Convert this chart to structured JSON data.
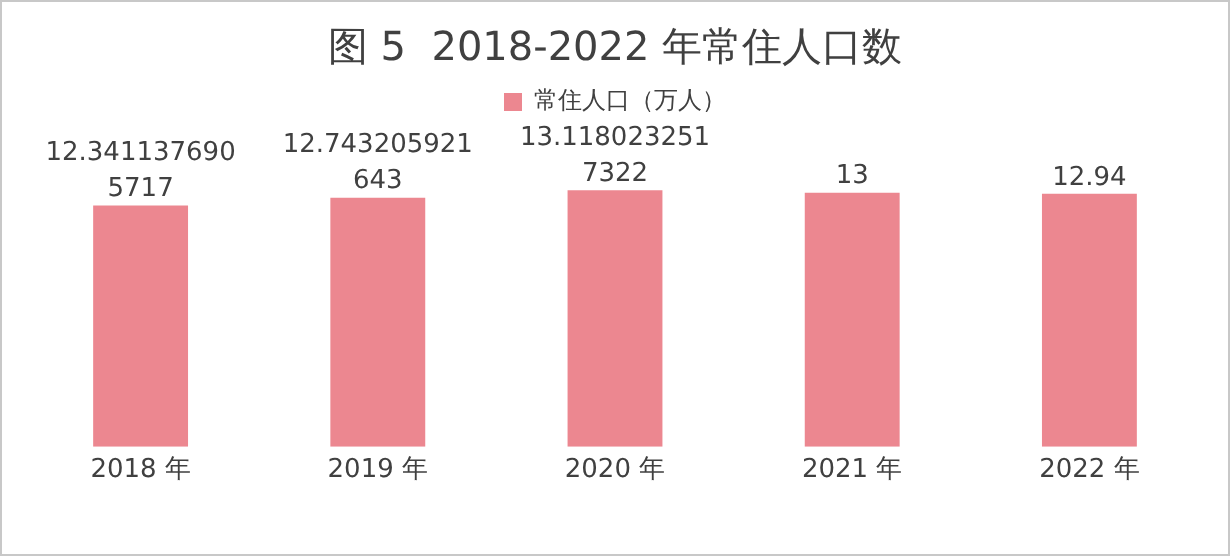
{
  "chart_data": {
    "type": "bar",
    "title": "图 5  2018-2022 年常住人口数",
    "categories": [
      "2018 年",
      "2019 年",
      "2020 年",
      "2021 年",
      "2022 年"
    ],
    "series": [
      {
        "name": "常住人口（万人）",
        "color": "#ec8790",
        "values": [
          12.3411376905717,
          12.743205921643,
          13.1180232517322,
          13,
          12.94
        ]
      }
    ],
    "data_labels": true,
    "legend": "top",
    "grid": false
  }
}
